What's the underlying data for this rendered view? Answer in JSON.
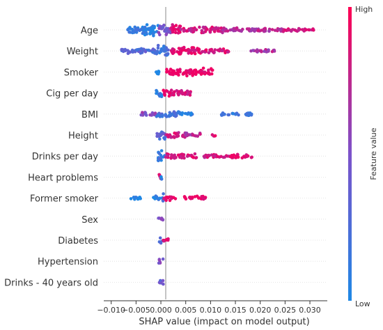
{
  "chart_data": {
    "type": "scatter",
    "subtype": "shap-beeswarm",
    "title": "",
    "xlabel": "SHAP value (impact on model output)",
    "xlim": [
      -0.0115,
      0.0335
    ],
    "x_ticks": [
      -0.01,
      -0.005,
      0.0,
      0.005,
      0.01,
      0.015,
      0.02,
      0.025,
      0.03
    ],
    "x_tick_labels": [
      "−0.010",
      "−0.005",
      "0.000",
      "0.005",
      "0.010",
      "0.015",
      "0.020",
      "0.025",
      "0.030"
    ],
    "zero_line": 0,
    "colorbar": {
      "label": "Feature value",
      "high": "High",
      "low": "Low",
      "low_color": "#1e88e5",
      "high_color": "#ff0052"
    },
    "features": [
      {
        "name": "Age",
        "clusters": [
          {
            "from": -0.007,
            "to": -0.004,
            "value": 0.15,
            "width": 0.55
          },
          {
            "from": -0.004,
            "to": -0.0005,
            "value": 0.05,
            "width": 1.0
          },
          {
            "from": -0.0005,
            "to": 0.002,
            "value": 0.5,
            "width": 0.8
          },
          {
            "from": 0.002,
            "to": 0.004,
            "value": 0.9,
            "width": 0.9
          },
          {
            "from": 0.004,
            "to": 0.0125,
            "value": 0.85,
            "width": 0.35
          },
          {
            "from": 0.0125,
            "to": 0.025,
            "value": 0.75,
            "width": 0.2
          },
          {
            "from": 0.025,
            "to": 0.031,
            "value": 0.85,
            "width": 0.12
          }
        ]
      },
      {
        "name": "Weight",
        "clusters": [
          {
            "from": -0.0085,
            "to": -0.001,
            "value": 0.3,
            "width": 0.3
          },
          {
            "from": -0.001,
            "to": 0.0015,
            "value": 0.2,
            "width": 0.9
          },
          {
            "from": 0.0015,
            "to": 0.008,
            "value": 0.95,
            "width": 0.55
          },
          {
            "from": 0.008,
            "to": 0.014,
            "value": 0.9,
            "width": 0.2
          },
          {
            "from": 0.018,
            "to": 0.023,
            "value": 0.7,
            "width": 0.1
          }
        ]
      },
      {
        "name": "Smoker",
        "clusters": [
          {
            "from": -0.001,
            "to": 0.0,
            "value": 0.0,
            "width": 0.55
          },
          {
            "from": 0.001,
            "to": 0.0105,
            "value": 1.0,
            "width": 0.55
          }
        ]
      },
      {
        "name": "Cig per day",
        "clusters": [
          {
            "from": -0.001,
            "to": 0.0005,
            "value": 0.1,
            "width": 0.55
          },
          {
            "from": 0.0005,
            "to": 0.003,
            "value": 0.9,
            "width": 0.45
          },
          {
            "from": 0.003,
            "to": 0.006,
            "value": 0.9,
            "width": 0.3
          }
        ]
      },
      {
        "name": "BMI",
        "clusters": [
          {
            "from": -0.004,
            "to": -0.001,
            "value": 0.55,
            "width": 0.2
          },
          {
            "from": -0.001,
            "to": 0.004,
            "value": 0.2,
            "width": 0.45
          },
          {
            "from": 0.004,
            "to": 0.0065,
            "value": 0.1,
            "width": 0.1
          },
          {
            "from": 0.012,
            "to": 0.0185,
            "value": 0.15,
            "width": 0.12
          }
        ]
      },
      {
        "name": "Height",
        "clusters": [
          {
            "from": -0.0008,
            "to": 0.001,
            "value": 0.3,
            "width": 0.7
          },
          {
            "from": 0.001,
            "to": 0.005,
            "value": 0.85,
            "width": 0.35
          },
          {
            "from": 0.005,
            "to": 0.008,
            "value": 0.75,
            "width": 0.25
          },
          {
            "from": 0.01,
            "to": 0.011,
            "value": 0.9,
            "width": 0.1
          }
        ]
      },
      {
        "name": "Drinks per day",
        "clusters": [
          {
            "from": -0.0008,
            "to": 0.0008,
            "value": 0.15,
            "width": 0.9
          },
          {
            "from": 0.0008,
            "to": 0.0075,
            "value": 0.9,
            "width": 0.3
          },
          {
            "from": 0.0085,
            "to": 0.014,
            "value": 0.85,
            "width": 0.15
          },
          {
            "from": 0.014,
            "to": 0.0185,
            "value": 0.95,
            "width": 0.2
          }
        ]
      },
      {
        "name": "Heart problems",
        "clusters": [
          {
            "from": -0.0008,
            "to": 0.0,
            "value": 0.9,
            "width": 0.35
          },
          {
            "from": 0.0,
            "to": 0.0005,
            "value": 0.1,
            "width": 0.5
          }
        ]
      },
      {
        "name": "Former smoker",
        "clusters": [
          {
            "from": -0.0065,
            "to": -0.004,
            "value": 0.0,
            "width": 0.12
          },
          {
            "from": -0.0015,
            "to": 0.0,
            "value": 0.05,
            "width": 0.3
          },
          {
            "from": 0.0,
            "to": 0.0005,
            "value": 0.2,
            "width": 0.7
          },
          {
            "from": 0.0005,
            "to": 0.003,
            "value": 0.95,
            "width": 0.25
          },
          {
            "from": 0.0045,
            "to": 0.009,
            "value": 1.0,
            "width": 0.2
          }
        ]
      },
      {
        "name": "Sex",
        "clusters": [
          {
            "from": -0.0005,
            "to": 0.0005,
            "value": 0.5,
            "width": 0.4
          }
        ]
      },
      {
        "name": "Diabetes",
        "clusters": [
          {
            "from": -0.0004,
            "to": 0.0004,
            "value": 0.2,
            "width": 0.4
          },
          {
            "from": 0.0004,
            "to": 0.0018,
            "value": 0.95,
            "width": 0.2
          }
        ]
      },
      {
        "name": "Hypertension",
        "clusters": [
          {
            "from": -0.0005,
            "to": 0.0005,
            "value": 0.5,
            "width": 0.35
          }
        ]
      },
      {
        "name": "Drinks - 40 years old",
        "clusters": [
          {
            "from": -0.0005,
            "to": 0.0005,
            "value": 0.4,
            "width": 0.4
          }
        ]
      }
    ]
  }
}
